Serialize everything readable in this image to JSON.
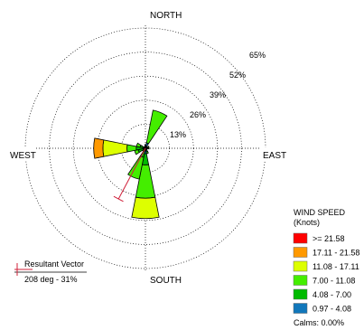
{
  "chart_data": {
    "type": "wind-rose",
    "directions": {
      "north": "NORTH",
      "east": "EAST",
      "south": "SOUTH",
      "west": "WEST"
    },
    "ring_labels": [
      "13%",
      "26%",
      "39%",
      "52%",
      "65%"
    ],
    "ring_values": [
      13,
      26,
      39,
      52,
      65
    ],
    "legend": {
      "title_line1": "WIND SPEED",
      "title_line2": "(Knots)",
      "items": [
        {
          "label": ">= 21.58",
          "color": "#ff0000"
        },
        {
          "label": "17.11 - 21.58",
          "color": "#ff9900"
        },
        {
          "label": "11.08 - 17.11",
          "color": "#ddff00"
        },
        {
          "label": "7.00 - 11.08",
          "color": "#44ee00"
        },
        {
          "label": "4.08 - 7.00",
          "color": "#00bb00"
        },
        {
          "label": "0.97 - 4.08",
          "color": "#1177bb"
        }
      ],
      "calms": "Calms: 0.00%"
    },
    "resultant": {
      "title": "Resultant Vector",
      "value": "208 deg - 31%",
      "direction_deg": 208,
      "percent": 31
    },
    "sectors": [
      {
        "direction_deg": 0,
        "cum": [
          2,
          2,
          2,
          2,
          2,
          2
        ]
      },
      {
        "direction_deg": 22.5,
        "cum": [
          3,
          3,
          21,
          21,
          21,
          21
        ]
      },
      {
        "direction_deg": 45,
        "cum": [
          1,
          1,
          1,
          1,
          1,
          1
        ]
      },
      {
        "direction_deg": 67.5,
        "cum": [
          1,
          2,
          2,
          2,
          2,
          2
        ]
      },
      {
        "direction_deg": 90,
        "cum": [
          1,
          2,
          2,
          2,
          2,
          2
        ]
      },
      {
        "direction_deg": 112.5,
        "cum": [
          1,
          1,
          1,
          1,
          1,
          1
        ]
      },
      {
        "direction_deg": 135,
        "cum": [
          1,
          1,
          1,
          1,
          1,
          1
        ]
      },
      {
        "direction_deg": 157.5,
        "cum": [
          1,
          2,
          3,
          3,
          3,
          3
        ]
      },
      {
        "direction_deg": 180,
        "cum": [
          3,
          9,
          27,
          38,
          38,
          38
        ]
      },
      {
        "direction_deg": 202.5,
        "cum": [
          1,
          5,
          17,
          17,
          17,
          17
        ]
      },
      {
        "direction_deg": 225,
        "cum": [
          1,
          1,
          2,
          2,
          2,
          2
        ]
      },
      {
        "direction_deg": 247.5,
        "cum": [
          1,
          4,
          6,
          6,
          6,
          6
        ]
      },
      {
        "direction_deg": 270,
        "cum": [
          1,
          5,
          10,
          23,
          28,
          28
        ]
      },
      {
        "direction_deg": 292.5,
        "cum": [
          1,
          3,
          5,
          5,
          5,
          5
        ]
      },
      {
        "direction_deg": 315,
        "cum": [
          1,
          1,
          1,
          1,
          1,
          1
        ]
      },
      {
        "direction_deg": 337.5,
        "cum": [
          1,
          1,
          1,
          1,
          1,
          1
        ]
      }
    ]
  }
}
